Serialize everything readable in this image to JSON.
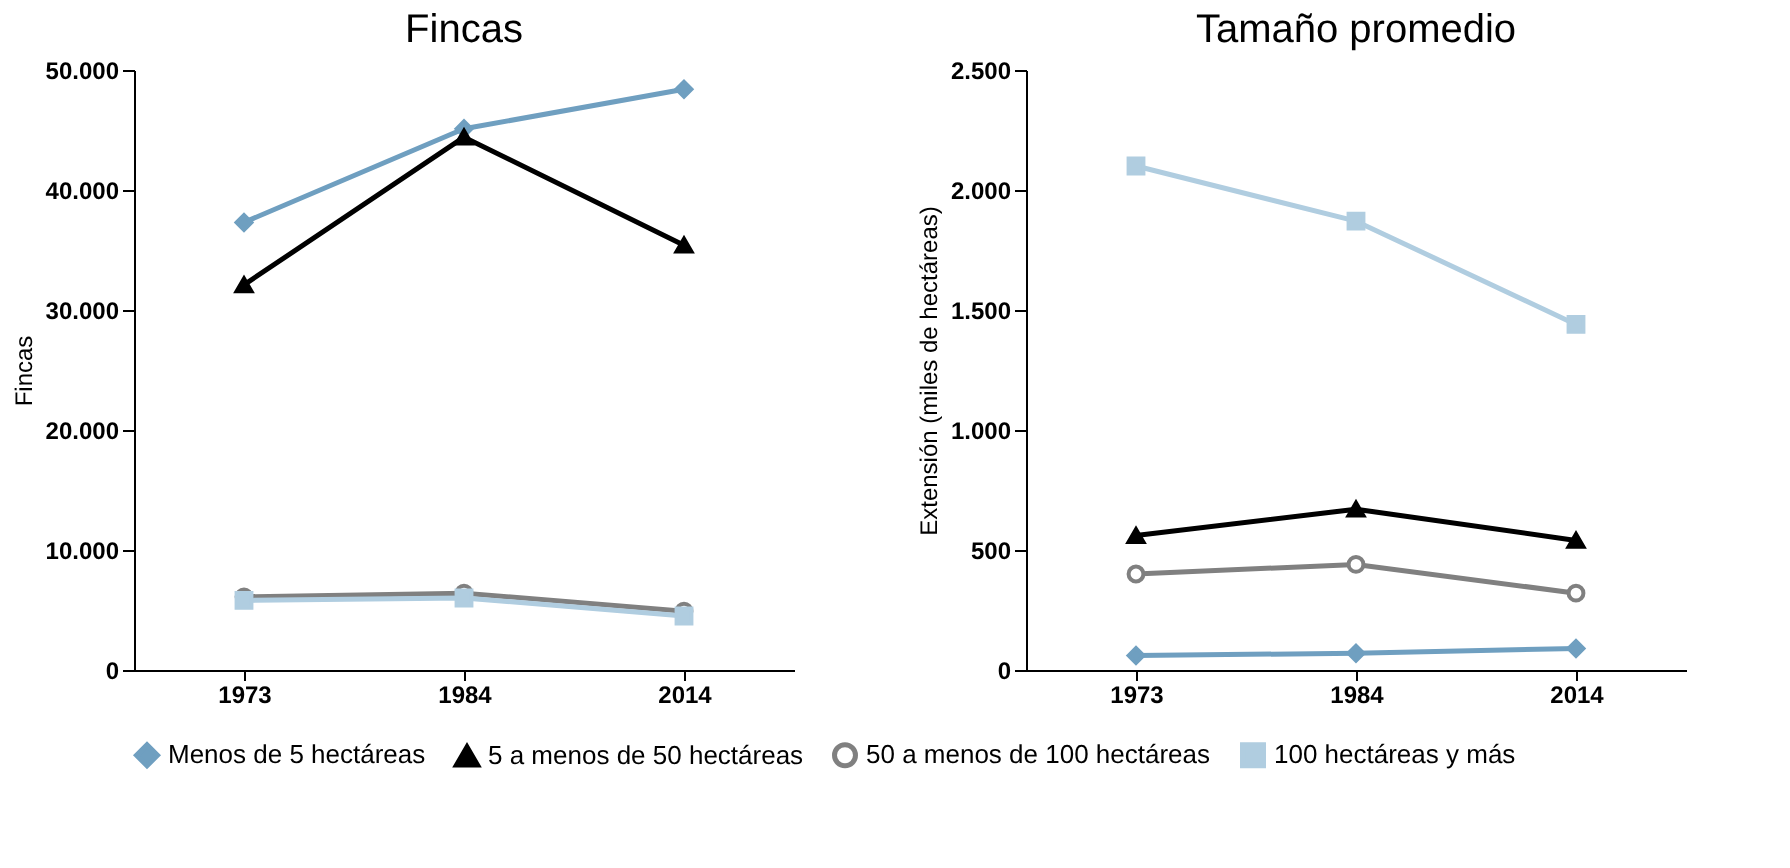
{
  "chart_data": [
    {
      "type": "line",
      "title": "Fincas",
      "ylabel": "Fincas",
      "categories": [
        "1973",
        "1984",
        "2014"
      ],
      "ylim": [
        0,
        50000
      ],
      "yticks": [
        {
          "value": 0,
          "label": "0"
        },
        {
          "value": 10000,
          "label": "10.000"
        },
        {
          "value": 20000,
          "label": "20.000"
        },
        {
          "value": 30000,
          "label": "30.000"
        },
        {
          "value": 40000,
          "label": "40.000"
        },
        {
          "value": 50000,
          "label": "50.000"
        }
      ],
      "grid": false,
      "legend": "bottom",
      "series": [
        {
          "name": "Menos de 5 hectáreas",
          "color": "#6f9fc0",
          "marker": "diamond",
          "values": [
            37300,
            45100,
            48400
          ]
        },
        {
          "name": "5 a menos de 50 hectáreas",
          "color": "#000000",
          "marker": "triangle",
          "values": [
            32100,
            44400,
            35400
          ]
        },
        {
          "name": "50 a menos de 100 hectáreas",
          "color": "#808080",
          "marker": "circle",
          "values": [
            6100,
            6400,
            4900
          ]
        },
        {
          "name": "100 hectáreas y más",
          "color": "#b0cde0",
          "marker": "square",
          "values": [
            5800,
            6000,
            4500
          ]
        }
      ]
    },
    {
      "type": "line",
      "title": "Tamaño promedio",
      "ylabel": "Extensión (miles de hectáreas)",
      "categories": [
        "1973",
        "1984",
        "2014"
      ],
      "ylim": [
        0,
        2500
      ],
      "yticks": [
        {
          "value": 0,
          "label": "0"
        },
        {
          "value": 500,
          "label": "500"
        },
        {
          "value": 1000,
          "label": "1.000"
        },
        {
          "value": 1500,
          "label": "1.500"
        },
        {
          "value": 2000,
          "label": "2.000"
        },
        {
          "value": 2500,
          "label": "2.500"
        }
      ],
      "grid": false,
      "legend": "bottom",
      "series": [
        {
          "name": "Menos de 5 hectáreas",
          "color": "#6f9fc0",
          "marker": "diamond",
          "values": [
            60,
            70,
            90
          ]
        },
        {
          "name": "5 a menos de 50 hectáreas",
          "color": "#000000",
          "marker": "triangle",
          "values": [
            560,
            670,
            540
          ]
        },
        {
          "name": "50 a menos de 100 hectáreas",
          "color": "#808080",
          "marker": "circle",
          "values": [
            400,
            440,
            320
          ]
        },
        {
          "name": "100 hectáreas y más",
          "color": "#b0cde0",
          "marker": "square",
          "values": [
            2100,
            1870,
            1440
          ]
        }
      ]
    }
  ]
}
